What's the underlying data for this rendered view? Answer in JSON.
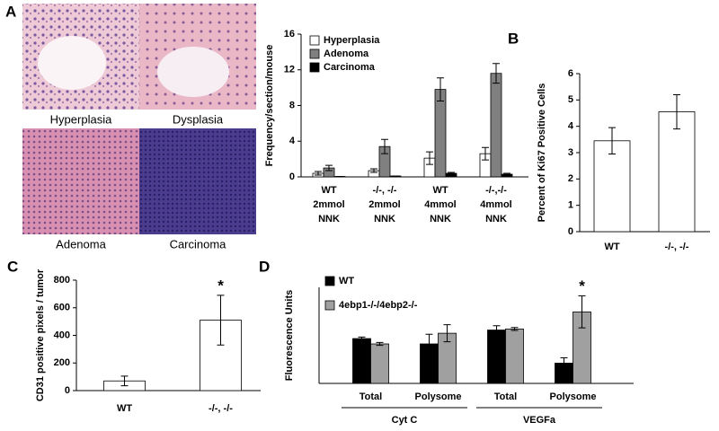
{
  "panel_labels": [
    "A",
    "B",
    "C",
    "D"
  ],
  "images": [
    "Hyperplasia",
    "Dysplasia",
    "Adenoma",
    "Carcinoma"
  ],
  "chart_data": [
    {
      "type": "bar",
      "ylabel": "Frequency/section/mouse",
      "categories": [
        [
          "WT",
          "2mmol",
          "NNK"
        ],
        [
          "-/-, -/-",
          "2mmol",
          "NNK"
        ],
        [
          "WT",
          "4mmol",
          "NNK"
        ],
        [
          "-/-,-/-",
          "4mmol",
          "NNK"
        ]
      ],
      "series": [
        {
          "name": "Hyperplasia",
          "color": "#ffffff",
          "values": [
            0.4,
            0.7,
            2.1,
            2.6
          ],
          "errors": [
            0.2,
            0.2,
            0.7,
            0.7
          ]
        },
        {
          "name": "Adenoma",
          "color": "#808080",
          "values": [
            1.0,
            3.4,
            9.8,
            11.6
          ],
          "errors": [
            0.3,
            0.8,
            1.3,
            1.1
          ]
        },
        {
          "name": "Carcinoma",
          "color": "#000000",
          "values": [
            0.05,
            0.1,
            0.4,
            0.3
          ],
          "errors": [
            0,
            0,
            0.1,
            0.1
          ]
        }
      ],
      "ylim": [
        0,
        16
      ],
      "yticks": [
        0,
        4,
        8,
        12,
        16
      ]
    },
    {
      "type": "bar",
      "ylabel": "Percent of Ki67 Positive Cells",
      "categories": [
        "WT",
        "-/-, -/-"
      ],
      "values": [
        3.45,
        4.55
      ],
      "errors": [
        0.5,
        0.65
      ],
      "color": "#ffffff",
      "ylim": [
        0,
        6
      ],
      "yticks": [
        0,
        1,
        2,
        3,
        4,
        5,
        6
      ]
    },
    {
      "type": "bar",
      "ylabel": "CD31 positive pixels / tumor",
      "categories": [
        "WT",
        "-/-, -/-"
      ],
      "values": [
        70,
        510
      ],
      "errors": [
        35,
        180
      ],
      "color": "#ffffff",
      "ylim": [
        0,
        800
      ],
      "yticks": [
        0,
        200,
        400,
        600,
        800
      ],
      "annotation": "*"
    },
    {
      "type": "bar",
      "ylabel": "Fluorescence Units",
      "categories": [
        "Total",
        "Polysome",
        "Total",
        "Polysome"
      ],
      "groups": [
        "Cyt C",
        "VEGFa"
      ],
      "series": [
        {
          "name": "WT",
          "color": "#000000",
          "values": [
            21,
            18.5,
            25,
            9.5
          ],
          "errors": [
            0.7,
            4.5,
            2,
            2.5
          ]
        },
        {
          "name": "4ebp1-/-/4ebp2-/-",
          "color": "#a0a0a0",
          "values": [
            18.5,
            23.5,
            25.5,
            33.5
          ],
          "errors": [
            0.7,
            4,
            0.7,
            7.5
          ]
        }
      ],
      "ylim": [
        0,
        45
      ],
      "annotation": "*"
    }
  ]
}
